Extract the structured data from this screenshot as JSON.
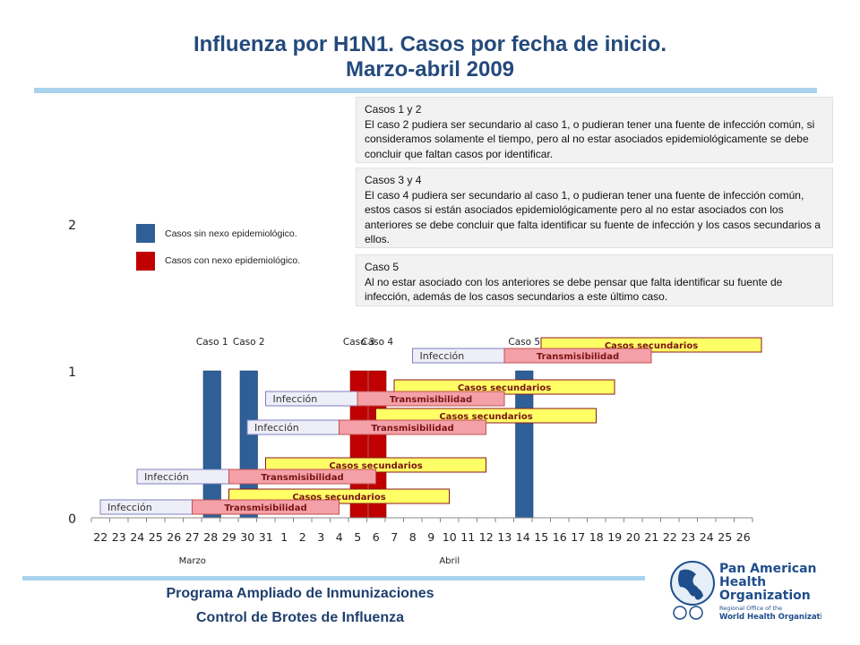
{
  "title": {
    "line1": "Influenza por H1N1. Casos por fecha de inicio.",
    "line2": "Marzo-abril 2009"
  },
  "notes": [
    {
      "heading": "Casos 1 y 2",
      "body": "El caso 2 pudiera ser secundario al caso 1, o pudieran tener una fuente de infección común, si consideramos solamente el tiempo, pero al no estar asociados epidemiológicamente se debe concluir que faltan casos por identificar."
    },
    {
      "heading": "Casos 3 y 4",
      "body": "El caso 4 pudiera ser secundario al caso 1, o pudieran tener una fuente de infección común, estos casos si están asociados epidemiológicamente pero al no estar asociados con los anteriores se debe concluir que falta identificar su fuente de infección y los casos secundarios a ellos."
    },
    {
      "heading": "Caso 5",
      "body": "Al no estar asociado con los anteriores se debe pensar que falta identificar su fuente de infección, además de los casos secundarios a este último caso."
    }
  ],
  "legend": [
    {
      "label": "Casos sin nexo epidemiológico.",
      "color": "#2e5f97"
    },
    {
      "label": "Casos con nexo epidemiológico.",
      "color": "#c00000"
    }
  ],
  "footer": {
    "line1": "Programa Ampliado de Inmunizaciones",
    "line2": "Control de Brotes de Influenza"
  },
  "logo": {
    "name_line1": "Pan American",
    "name_line2": "Health",
    "name_line3": "Organization",
    "sub_line1": "Regional Office of the",
    "sub_line2": "World Health Organization"
  },
  "chart_data": {
    "type": "bar",
    "categories": [
      "22",
      "23",
      "24",
      "25",
      "26",
      "27",
      "28",
      "29",
      "30",
      "31",
      "1",
      "2",
      "3",
      "4",
      "5",
      "6",
      "7",
      "8",
      "9",
      "10",
      "11",
      "12",
      "13",
      "14",
      "15",
      "16",
      "17",
      "18",
      "19",
      "20",
      "21",
      "22",
      "23",
      "24",
      "25",
      "26"
    ],
    "month_labels": [
      {
        "label": "Marzo",
        "at_index": 5
      },
      {
        "label": "Abril",
        "at_index": 19
      }
    ],
    "ylim": [
      0,
      2
    ],
    "yticks": [
      0,
      1,
      2
    ],
    "cases": [
      {
        "label": "Caso 1",
        "day_index": 6,
        "value": 1,
        "linked": false
      },
      {
        "label": "Caso 2",
        "day_index": 8,
        "value": 1,
        "linked": false
      },
      {
        "label": "Caso 3",
        "day_index": 14,
        "value": 1,
        "linked": true
      },
      {
        "label": "Caso 4",
        "day_index": 15,
        "value": 1,
        "linked": true
      },
      {
        "label": "Caso 5",
        "day_index": 23,
        "value": 1,
        "linked": false
      }
    ],
    "periods": [
      {
        "case": "Caso 1",
        "infeccion": [
          0,
          5
        ],
        "transmisibilidad": [
          5,
          13
        ],
        "secundarios": [
          7,
          19
        ]
      },
      {
        "case": "Caso 2",
        "infeccion": [
          2,
          7
        ],
        "transmisibilidad": [
          7,
          15
        ],
        "secundarios": [
          9,
          21
        ]
      },
      {
        "case": "Caso 3",
        "infeccion": [
          8,
          13
        ],
        "transmisibilidad": [
          13,
          21
        ],
        "secundarios": [
          15,
          27
        ]
      },
      {
        "case": "Caso 4",
        "infeccion": [
          9,
          14
        ],
        "transmisibilidad": [
          14,
          22
        ],
        "secundarios": [
          16,
          28
        ]
      },
      {
        "case": "Caso 5",
        "infeccion": [
          17,
          22
        ],
        "transmisibilidad": [
          22,
          30
        ],
        "secundarios": [
          24,
          36
        ]
      }
    ],
    "period_labels": {
      "infeccion": "Infección",
      "transmisibilidad": "Transmisibilidad",
      "secundarios": "Casos secundarios"
    },
    "colors": {
      "infeccion_fill": "#eeeef8",
      "infeccion_stroke": "#7f7fbf",
      "trans_fill": "#f4a0a8",
      "trans_stroke": "#c0504d",
      "sec_fill": "#ffff66",
      "sec_stroke": "#8b1a1a"
    }
  }
}
